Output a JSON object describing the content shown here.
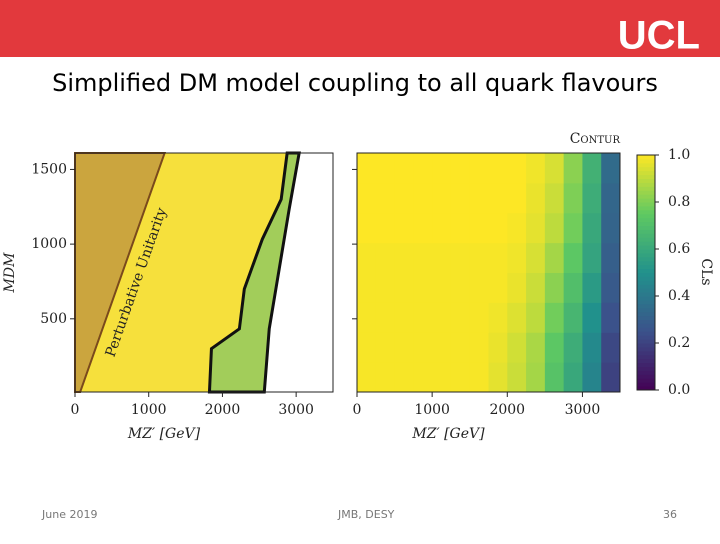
{
  "header": {
    "logo": "UCL",
    "title": "Simplified DM model coupling to all quark flavours"
  },
  "chart_data": [
    {
      "type": "contour",
      "xlabel": "MZ′ [GeV]",
      "ylabel": "MDM",
      "xlim": [
        0,
        3500
      ],
      "ylim": [
        10,
        1610
      ],
      "xticks": [
        0,
        1000,
        2000,
        3000
      ],
      "yticks": [
        500,
        1000,
        1500
      ],
      "annotation": "Perturbative Unitarity",
      "regions": [
        {
          "color": "#f6e03c",
          "x": [
            0,
            2568,
            2635,
            2770,
            2905,
            3041,
            0
          ],
          "y": [
            10,
            10,
            433,
            833,
            1233,
            1610,
            1610
          ]
        },
        {
          "color": "#a2cd5a",
          "x": [
            2568,
            2635,
            2770,
            2905,
            3041,
            2878,
            2797,
            2541,
            2297,
            2230,
            1851,
            1824
          ],
          "y": [
            10,
            433,
            833,
            1233,
            1610,
            1610,
            1300,
            1033,
            700,
            433,
            300,
            10
          ]
        },
        {
          "color": "#cba53e",
          "x": [
            0,
            70,
            1216,
            0
          ],
          "y": [
            10,
            10,
            1610,
            1610
          ]
        }
      ]
    },
    {
      "type": "heatmap",
      "xlabel": "MZ′ [GeV]",
      "logo": "Contur",
      "colorbar_label": "CLs",
      "xlim": [
        0,
        3500
      ],
      "ylim": [
        10,
        1610
      ],
      "xticks": [
        0,
        1000,
        2000,
        3000
      ],
      "yticks": [
        500,
        1000,
        1500
      ],
      "xbins": [
        0,
        250,
        500,
        750,
        1000,
        1250,
        1500,
        1750,
        2000,
        2250,
        2500,
        2750,
        3000,
        3250,
        3500
      ],
      "ybins": [
        10,
        210,
        410,
        610,
        810,
        1010,
        1210,
        1410,
        1610
      ],
      "z": [
        [
          0.99,
          0.99,
          0.99,
          0.99,
          0.99,
          0.99,
          0.99,
          0.96,
          0.92,
          0.86,
          0.72,
          0.6,
          0.45,
          0.2
        ],
        [
          0.99,
          0.99,
          0.99,
          0.99,
          0.99,
          0.99,
          0.99,
          0.97,
          0.93,
          0.87,
          0.74,
          0.62,
          0.47,
          0.22
        ],
        [
          0.99,
          0.99,
          0.99,
          0.99,
          0.99,
          0.99,
          0.99,
          0.98,
          0.95,
          0.9,
          0.78,
          0.66,
          0.5,
          0.25
        ],
        [
          0.99,
          0.99,
          0.99,
          0.99,
          0.99,
          0.99,
          0.99,
          0.99,
          0.97,
          0.92,
          0.82,
          0.7,
          0.54,
          0.28
        ],
        [
          0.99,
          0.99,
          0.99,
          0.99,
          0.99,
          0.99,
          0.99,
          0.99,
          0.98,
          0.94,
          0.86,
          0.74,
          0.58,
          0.3
        ],
        [
          1,
          1,
          1,
          1,
          1,
          1,
          1,
          1,
          0.99,
          0.96,
          0.9,
          0.78,
          0.6,
          0.32
        ],
        [
          1,
          1,
          1,
          1,
          1,
          1,
          1,
          1,
          1,
          0.97,
          0.92,
          0.8,
          0.62,
          0.33
        ],
        [
          1,
          1,
          1,
          1,
          1,
          1,
          1,
          1,
          1,
          0.98,
          0.94,
          0.82,
          0.64,
          0.35
        ]
      ],
      "zlim": [
        0,
        1
      ],
      "zticks": [
        {
          "value": 0,
          "label": "0.0"
        },
        {
          "value": 0.2,
          "label": "0.2"
        },
        {
          "value": 0.4,
          "label": "0.4"
        },
        {
          "value": 0.6,
          "label": "0.6"
        },
        {
          "value": 0.8,
          "label": "0.8"
        },
        {
          "value": 1,
          "label": "1.0"
        }
      ]
    }
  ],
  "footer": {
    "date": "June 2019",
    "author": "JMB, DESY",
    "page": "36"
  }
}
